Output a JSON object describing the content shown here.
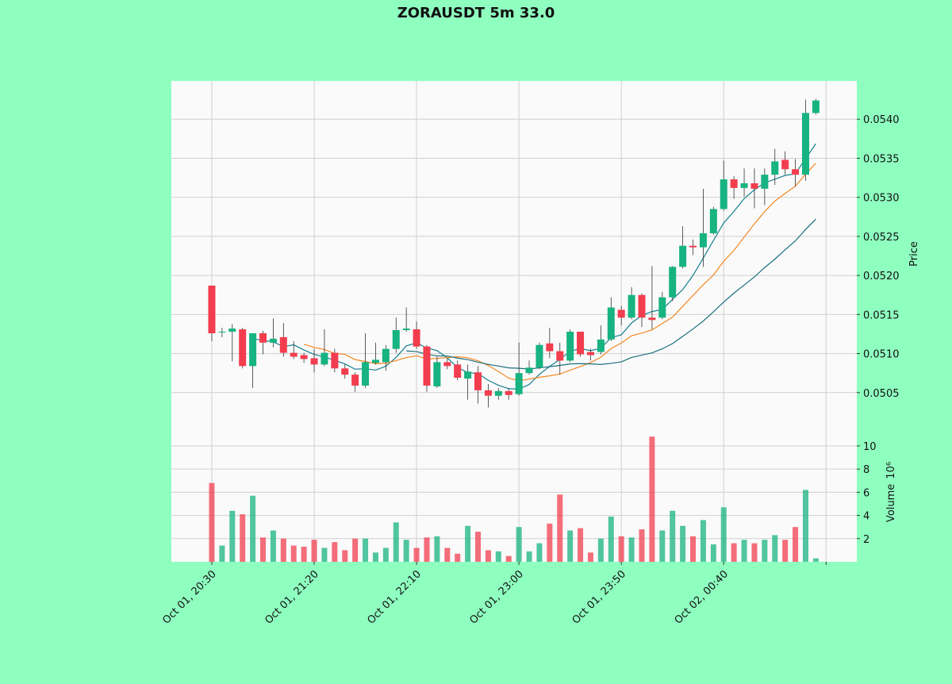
{
  "chart_data": {
    "type": "candlestick",
    "title": "ZORAUSDT 5m 33.0",
    "ylabel": "Price",
    "volume_label": "Volume",
    "volume_scale_label": "10⁶",
    "x": [
      "Oct 01, 20:30",
      "Oct 01, 20:35",
      "Oct 01, 20:40",
      "Oct 01, 20:45",
      "Oct 01, 20:50",
      "Oct 01, 20:55",
      "Oct 01, 21:00",
      "Oct 01, 21:05",
      "Oct 01, 21:10",
      "Oct 01, 21:15",
      "Oct 01, 21:20",
      "Oct 01, 21:25",
      "Oct 01, 21:30",
      "Oct 01, 21:35",
      "Oct 01, 21:40",
      "Oct 01, 21:45",
      "Oct 01, 21:50",
      "Oct 01, 21:55",
      "Oct 01, 22:00",
      "Oct 01, 22:05",
      "Oct 01, 22:10",
      "Oct 01, 22:15",
      "Oct 01, 22:20",
      "Oct 01, 22:25",
      "Oct 01, 22:30",
      "Oct 01, 22:35",
      "Oct 01, 22:40",
      "Oct 01, 22:45",
      "Oct 01, 22:50",
      "Oct 01, 22:55",
      "Oct 01, 23:00",
      "Oct 01, 23:05",
      "Oct 01, 23:10",
      "Oct 01, 23:15",
      "Oct 01, 23:20",
      "Oct 01, 23:25",
      "Oct 01, 23:30",
      "Oct 01, 23:35",
      "Oct 01, 23:40",
      "Oct 01, 23:45",
      "Oct 01, 23:50",
      "Oct 01, 23:55",
      "Oct 02, 00:00",
      "Oct 02, 00:05",
      "Oct 02, 00:10",
      "Oct 02, 00:15",
      "Oct 02, 00:20",
      "Oct 02, 00:25",
      "Oct 02, 00:30",
      "Oct 02, 00:35",
      "Oct 02, 00:40",
      "Oct 02, 00:45",
      "Oct 02, 00:50",
      "Oct 02, 00:55",
      "Oct 02, 01:00",
      "Oct 02, 01:05",
      "Oct 02, 01:10",
      "Oct 02, 01:15",
      "Oct 02, 01:20",
      "Oct 02, 01:25"
    ],
    "xlim": [
      -3.95,
      63
    ],
    "xticks": [
      0,
      10,
      20,
      30,
      40,
      50,
      60
    ],
    "open": [
      0.05187,
      0.05127,
      0.05128,
      0.05131,
      0.05084,
      0.05126,
      0.05114,
      0.05121,
      0.05101,
      0.05098,
      0.05094,
      0.05086,
      0.05101,
      0.05081,
      0.05073,
      0.05059,
      0.05088,
      0.05089,
      0.05106,
      0.0513,
      0.05131,
      0.05109,
      0.05058,
      0.05089,
      0.05086,
      0.05068,
      0.05076,
      0.05053,
      0.05046,
      0.05052,
      0.05048,
      0.05075,
      0.05082,
      0.05113,
      0.05103,
      0.05091,
      0.05128,
      0.05102,
      0.05102,
      0.05118,
      0.05156,
      0.05146,
      0.05175,
      0.05146,
      0.05146,
      0.05172,
      0.05211,
      0.05238,
      0.05236,
      0.05254,
      0.05285,
      0.05323,
      0.05312,
      0.05318,
      0.05311,
      0.05329,
      0.05348,
      0.05336,
      0.05329,
      0.05408
    ],
    "high": [
      0.05187,
      0.05133,
      0.05138,
      0.05133,
      0.05126,
      0.05129,
      0.05145,
      0.05139,
      0.05116,
      0.05101,
      0.05106,
      0.05131,
      0.05106,
      0.05086,
      0.05076,
      0.05126,
      0.05114,
      0.05111,
      0.05146,
      0.05159,
      0.05141,
      0.05111,
      0.05096,
      0.05094,
      0.05091,
      0.05086,
      0.05084,
      0.05061,
      0.05056,
      0.05056,
      0.05114,
      0.05091,
      0.05114,
      0.05133,
      0.05114,
      0.05131,
      0.05128,
      0.05106,
      0.05136,
      0.05172,
      0.05161,
      0.05185,
      0.05177,
      0.05212,
      0.05179,
      0.05212,
      0.05263,
      0.05246,
      0.05311,
      0.05288,
      0.05347,
      0.05327,
      0.05337,
      0.05337,
      0.05337,
      0.05362,
      0.05359,
      0.05349,
      0.05425,
      0.05426
    ],
    "low": [
      0.05116,
      0.05121,
      0.0509,
      0.05081,
      0.05056,
      0.05099,
      0.05108,
      0.05096,
      0.05093,
      0.05088,
      0.05076,
      0.05084,
      0.05076,
      0.05068,
      0.05051,
      0.05056,
      0.05086,
      0.05078,
      0.05101,
      0.05128,
      0.05106,
      0.05051,
      0.05056,
      0.0508,
      0.05066,
      0.05041,
      0.05036,
      0.05031,
      0.05041,
      0.05041,
      0.05046,
      0.05073,
      0.0508,
      0.05094,
      0.05073,
      0.05089,
      0.05096,
      0.05091,
      0.05099,
      0.05116,
      0.05136,
      0.05144,
      0.05134,
      0.05131,
      0.05144,
      0.05167,
      0.05209,
      0.05226,
      0.05211,
      0.05252,
      0.05283,
      0.05298,
      0.05301,
      0.05286,
      0.0529,
      0.05316,
      0.05329,
      0.05314,
      0.05321,
      0.05406
    ],
    "close": [
      0.05126,
      0.05128,
      0.05132,
      0.05084,
      0.05126,
      0.05114,
      0.05119,
      0.05101,
      0.05096,
      0.05093,
      0.05086,
      0.05101,
      0.05081,
      0.05073,
      0.05059,
      0.05089,
      0.05092,
      0.05106,
      0.0513,
      0.05132,
      0.05109,
      0.05059,
      0.05089,
      0.05084,
      0.05069,
      0.05077,
      0.05053,
      0.05046,
      0.05052,
      0.05047,
      0.05075,
      0.05082,
      0.05111,
      0.05103,
      0.05091,
      0.05128,
      0.05099,
      0.05098,
      0.05118,
      0.05159,
      0.05146,
      0.05175,
      0.05146,
      0.05143,
      0.05172,
      0.05211,
      0.05238,
      0.05236,
      0.05254,
      0.05285,
      0.05323,
      0.05312,
      0.05318,
      0.05311,
      0.05329,
      0.05346,
      0.05336,
      0.05329,
      0.05408,
      0.05424
    ],
    "volume": [
      6.8,
      1.4,
      4.4,
      4.1,
      5.7,
      2.1,
      2.7,
      2.0,
      1.4,
      1.3,
      1.9,
      1.2,
      1.7,
      1.0,
      2.0,
      2.0,
      0.8,
      1.2,
      3.4,
      1.9,
      1.2,
      2.1,
      2.2,
      1.2,
      0.7,
      3.1,
      2.6,
      1.0,
      0.9,
      0.5,
      3.0,
      0.9,
      1.6,
      3.3,
      5.8,
      2.7,
      2.9,
      0.8,
      2.0,
      3.9,
      2.2,
      2.1,
      2.8,
      10.8,
      2.7,
      4.4,
      3.1,
      2.2,
      3.6,
      1.5,
      4.7,
      1.6,
      1.9,
      1.6,
      1.9,
      2.3,
      1.9,
      3.0,
      6.2,
      0.3
    ],
    "up_color": "#17b381",
    "down_color": "#f23d4f",
    "mav": [
      {
        "color": "#16808f",
        "values": [
          null,
          null,
          null,
          null,
          0.051192,
          0.051168,
          0.05115,
          0.051088,
          0.051112,
          0.051046,
          0.05099,
          0.050954,
          0.050914,
          0.050868,
          0.0508,
          0.050806,
          0.050788,
          0.050838,
          0.050952,
          0.051098,
          0.051138,
          0.051072,
          0.051038,
          0.050946,
          0.05082,
          0.050756,
          0.050744,
          0.050658,
          0.050594,
          0.05055,
          0.050546,
          0.050604,
          0.050734,
          0.050836,
          0.050924,
          0.05103,
          0.051064,
          0.051038,
          0.051068,
          0.051204,
          0.05124,
          0.051392,
          0.051488,
          0.051538,
          0.051564,
          0.051694,
          0.05182,
          0.052,
          0.052222,
          0.052448,
          0.052672,
          0.05282,
          0.052984,
          0.053098,
          0.053186,
          0.053232,
          0.05328,
          0.053302,
          0.053496,
          0.053686
        ]
      },
      {
        "color": "#f5861f",
        "values": [
          null,
          null,
          null,
          null,
          null,
          null,
          null,
          null,
          null,
          0.051119,
          0.051079,
          0.051052,
          0.051001,
          0.05099,
          0.050923,
          0.050898,
          0.050871,
          0.050876,
          0.05091,
          0.050949,
          0.050972,
          0.05093,
          0.050938,
          0.050949,
          0.050959,
          0.050947,
          0.050908,
          0.050848,
          0.05077,
          0.050685,
          0.050651,
          0.050674,
          0.050696,
          0.050715,
          0.050737,
          0.050788,
          0.050834,
          0.050886,
          0.050952,
          0.051064,
          0.051135,
          0.051228,
          0.051263,
          0.051303,
          0.051384,
          0.051467,
          0.051606,
          0.051744,
          0.05188,
          0.052006,
          0.052183,
          0.05232,
          0.052492,
          0.05266,
          0.052817,
          0.052952,
          0.05305,
          0.053143,
          0.053297,
          0.053436
        ]
      },
      {
        "color": "#1b6f7e",
        "values": [
          null,
          null,
          null,
          null,
          null,
          null,
          null,
          null,
          null,
          null,
          null,
          null,
          null,
          null,
          null,
          null,
          null,
          null,
          null,
          0.051034,
          0.0510255,
          0.050991,
          0.0509695,
          0.0509695,
          0.050941,
          0.0509225,
          0.0508895,
          0.050862,
          0.05084,
          0.050817,
          0.0508115,
          0.050802,
          0.050817,
          0.050832,
          0.050848,
          0.0508675,
          0.050871,
          0.050867,
          0.050861,
          0.0508745,
          0.050893,
          0.050951,
          0.0509795,
          0.051009,
          0.0510605,
          0.0511275,
          0.05122,
          0.051315,
          0.051416,
          0.051535,
          0.051659,
          0.051774,
          0.0518775,
          0.0519815,
          0.0521005,
          0.0522095,
          0.052328,
          0.0524435,
          0.0525885,
          0.052721
        ]
      }
    ],
    "ylim": [
      0.04999,
      0.05449
    ],
    "yticks": [
      0.0505,
      {
        "value": 0.051,
        "label": "0.0510"
      },
      0.0515,
      {
        "value": 0.052,
        "label": "0.0520"
      },
      0.0525,
      {
        "value": 0.053,
        "label": "0.0530"
      },
      0.0535,
      {
        "value": 0.054,
        "label": "0.0540"
      }
    ],
    "volume_ylim": [
      0,
      11.16
    ],
    "volume_yticks": [
      2,
      4,
      6,
      8,
      10
    ],
    "grid": true
  }
}
